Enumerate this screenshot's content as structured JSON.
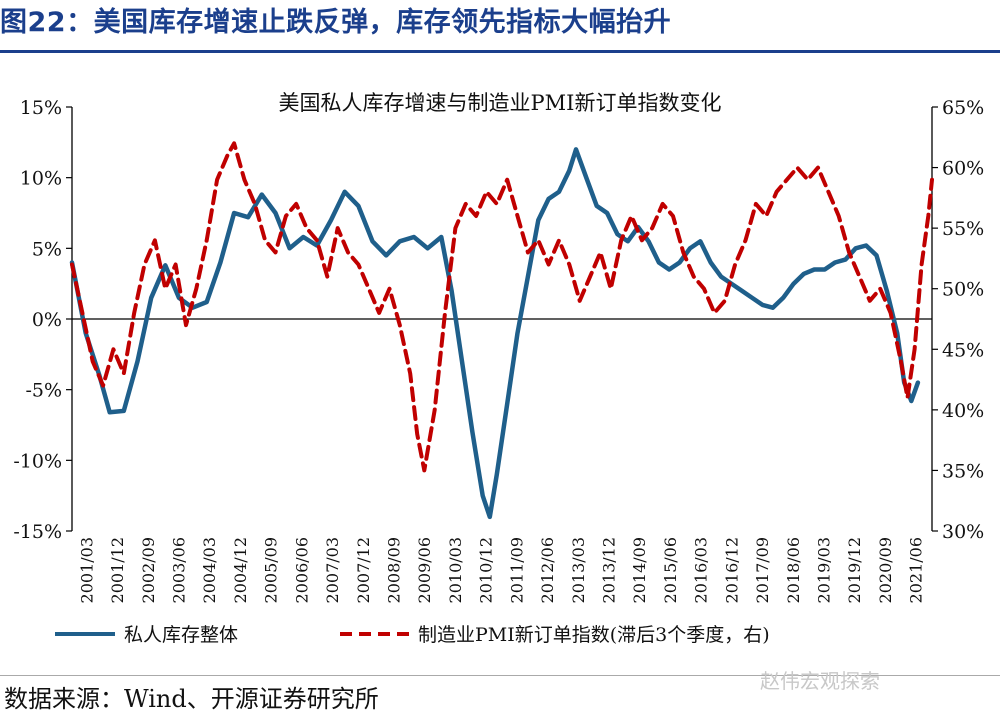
{
  "figure_title": "图22：美国库存增速止跌反弹，库存领先指标大幅抬升",
  "source_text": "数据来源：Wind、开源证券研究所",
  "watermark": "赵伟宏观探索",
  "colors": {
    "title": "#1b3f8c",
    "inventory_series": "#1f5f8b",
    "pmi_series": "#c00000"
  },
  "chart_data": {
    "type": "line",
    "title": "美国私人库存增速与制造业PMI新订单指数变化",
    "x_tick_labels": [
      "2001/03",
      "2001/12",
      "2002/09",
      "2003/06",
      "2004/03",
      "2004/12",
      "2005/09",
      "2006/06",
      "2007/03",
      "2007/12",
      "2008/09",
      "2009/06",
      "2010/03",
      "2010/12",
      "2011/09",
      "2012/06",
      "2013/03",
      "2013/12",
      "2014/09",
      "2015/06",
      "2016/03",
      "2016/12",
      "2017/09",
      "2018/06",
      "2019/03",
      "2019/12",
      "2020/09",
      "2021/06"
    ],
    "y_left": {
      "ticks": [
        "15%",
        "10%",
        "5%",
        "0%",
        "-5%",
        "-10%",
        "-15%"
      ],
      "range": [
        -15,
        15
      ]
    },
    "y_right": {
      "ticks": [
        "65%",
        "60%",
        "55%",
        "50%",
        "45%",
        "40%",
        "35%",
        "30%"
      ],
      "range": [
        30,
        65
      ]
    },
    "series": [
      {
        "name": "私人库存整体",
        "axis": "left",
        "style": "solid",
        "values": [
          [
            2001.17,
            4
          ],
          [
            2001.5,
            -1
          ],
          [
            2001.83,
            -4
          ],
          [
            2002.08,
            -6.6
          ],
          [
            2002.42,
            -6.5
          ],
          [
            2002.75,
            -3
          ],
          [
            2003.08,
            1.5
          ],
          [
            2003.42,
            3.8
          ],
          [
            2003.75,
            1.5
          ],
          [
            2004.08,
            0.8
          ],
          [
            2004.42,
            1.2
          ],
          [
            2004.75,
            4
          ],
          [
            2005.08,
            7.5
          ],
          [
            2005.42,
            7.2
          ],
          [
            2005.75,
            8.8
          ],
          [
            2006.08,
            7.5
          ],
          [
            2006.42,
            5
          ],
          [
            2006.75,
            5.8
          ],
          [
            2007.08,
            5.2
          ],
          [
            2007.42,
            7
          ],
          [
            2007.75,
            9
          ],
          [
            2008.08,
            8
          ],
          [
            2008.42,
            5.5
          ],
          [
            2008.75,
            4.5
          ],
          [
            2009.08,
            5.5
          ],
          [
            2009.42,
            5.8
          ],
          [
            2009.75,
            5
          ],
          [
            2010.08,
            5.8
          ],
          [
            2010.33,
            2
          ],
          [
            2010.58,
            -3
          ],
          [
            2010.83,
            -8
          ],
          [
            2011.08,
            -12.5
          ],
          [
            2011.25,
            -14
          ],
          [
            2011.42,
            -11
          ],
          [
            2011.67,
            -6
          ],
          [
            2011.92,
            -1
          ],
          [
            2012.17,
            3
          ],
          [
            2012.42,
            7
          ],
          [
            2012.67,
            8.5
          ],
          [
            2012.92,
            9
          ],
          [
            2013.17,
            10.5
          ],
          [
            2013.33,
            12
          ],
          [
            2013.58,
            10
          ],
          [
            2013.83,
            8
          ],
          [
            2014.08,
            7.5
          ],
          [
            2014.33,
            6
          ],
          [
            2014.58,
            5.5
          ],
          [
            2014.83,
            6.5
          ],
          [
            2015.08,
            5.5
          ],
          [
            2015.33,
            4
          ],
          [
            2015.58,
            3.5
          ],
          [
            2015.83,
            4
          ],
          [
            2016.08,
            5
          ],
          [
            2016.33,
            5.5
          ],
          [
            2016.58,
            4
          ],
          [
            2016.83,
            3
          ],
          [
            2017.08,
            2.5
          ],
          [
            2017.33,
            2
          ],
          [
            2017.58,
            1.5
          ],
          [
            2017.83,
            1
          ],
          [
            2018.08,
            0.8
          ],
          [
            2018.33,
            1.5
          ],
          [
            2018.58,
            2.5
          ],
          [
            2018.83,
            3.2
          ],
          [
            2019.08,
            3.5
          ],
          [
            2019.33,
            3.5
          ],
          [
            2019.58,
            4
          ],
          [
            2019.83,
            4.2
          ],
          [
            2020.08,
            5
          ],
          [
            2020.33,
            5.2
          ],
          [
            2020.58,
            4.5
          ],
          [
            2020.83,
            2
          ],
          [
            2021.08,
            -1
          ],
          [
            2021.25,
            -4.5
          ],
          [
            2021.42,
            -5.8
          ],
          [
            2021.58,
            -4.5
          ]
        ]
      },
      {
        "name": "制造业PMI新订单指数(滞后3个季度，右)",
        "axis": "right",
        "style": "dashed",
        "values": [
          [
            2001.17,
            52
          ],
          [
            2001.42,
            48
          ],
          [
            2001.67,
            44
          ],
          [
            2001.92,
            42
          ],
          [
            2002.17,
            45
          ],
          [
            2002.42,
            43
          ],
          [
            2002.67,
            48
          ],
          [
            2002.92,
            52
          ],
          [
            2003.17,
            54
          ],
          [
            2003.42,
            50
          ],
          [
            2003.67,
            52
          ],
          [
            2003.92,
            47
          ],
          [
            2004.17,
            50
          ],
          [
            2004.42,
            54
          ],
          [
            2004.67,
            59
          ],
          [
            2004.92,
            61
          ],
          [
            2005.08,
            62
          ],
          [
            2005.33,
            59
          ],
          [
            2005.58,
            57
          ],
          [
            2005.83,
            54
          ],
          [
            2006.08,
            53
          ],
          [
            2006.33,
            56
          ],
          [
            2006.58,
            57
          ],
          [
            2006.83,
            55
          ],
          [
            2007.08,
            54
          ],
          [
            2007.33,
            51
          ],
          [
            2007.58,
            55
          ],
          [
            2007.83,
            53
          ],
          [
            2008.08,
            52
          ],
          [
            2008.33,
            50
          ],
          [
            2008.58,
            48
          ],
          [
            2008.83,
            50
          ],
          [
            2009.08,
            47
          ],
          [
            2009.33,
            43
          ],
          [
            2009.5,
            38
          ],
          [
            2009.67,
            35
          ],
          [
            2009.92,
            40
          ],
          [
            2010.17,
            48
          ],
          [
            2010.42,
            55
          ],
          [
            2010.67,
            57
          ],
          [
            2010.92,
            56
          ],
          [
            2011.17,
            58
          ],
          [
            2011.42,
            57
          ],
          [
            2011.67,
            59
          ],
          [
            2011.92,
            56
          ],
          [
            2012.17,
            53
          ],
          [
            2012.42,
            54
          ],
          [
            2012.67,
            52
          ],
          [
            2012.92,
            54
          ],
          [
            2013.17,
            52
          ],
          [
            2013.42,
            49
          ],
          [
            2013.67,
            51
          ],
          [
            2013.92,
            53
          ],
          [
            2014.17,
            50
          ],
          [
            2014.42,
            54
          ],
          [
            2014.67,
            56
          ],
          [
            2014.92,
            54
          ],
          [
            2015.17,
            55
          ],
          [
            2015.42,
            57
          ],
          [
            2015.67,
            56
          ],
          [
            2015.92,
            53
          ],
          [
            2016.17,
            51
          ],
          [
            2016.42,
            50
          ],
          [
            2016.67,
            48
          ],
          [
            2016.92,
            49
          ],
          [
            2017.17,
            52
          ],
          [
            2017.42,
            54
          ],
          [
            2017.67,
            57
          ],
          [
            2017.92,
            56
          ],
          [
            2018.17,
            58
          ],
          [
            2018.42,
            59
          ],
          [
            2018.67,
            60
          ],
          [
            2018.92,
            59
          ],
          [
            2019.17,
            60
          ],
          [
            2019.42,
            58
          ],
          [
            2019.67,
            56
          ],
          [
            2019.92,
            53
          ],
          [
            2020.17,
            51
          ],
          [
            2020.42,
            49
          ],
          [
            2020.67,
            50
          ],
          [
            2020.92,
            48
          ],
          [
            2021.17,
            44
          ],
          [
            2021.33,
            41
          ],
          [
            2021.5,
            45
          ],
          [
            2021.67,
            52
          ],
          [
            2021.83,
            56
          ],
          [
            2021.92,
            59
          ]
        ]
      }
    ]
  }
}
